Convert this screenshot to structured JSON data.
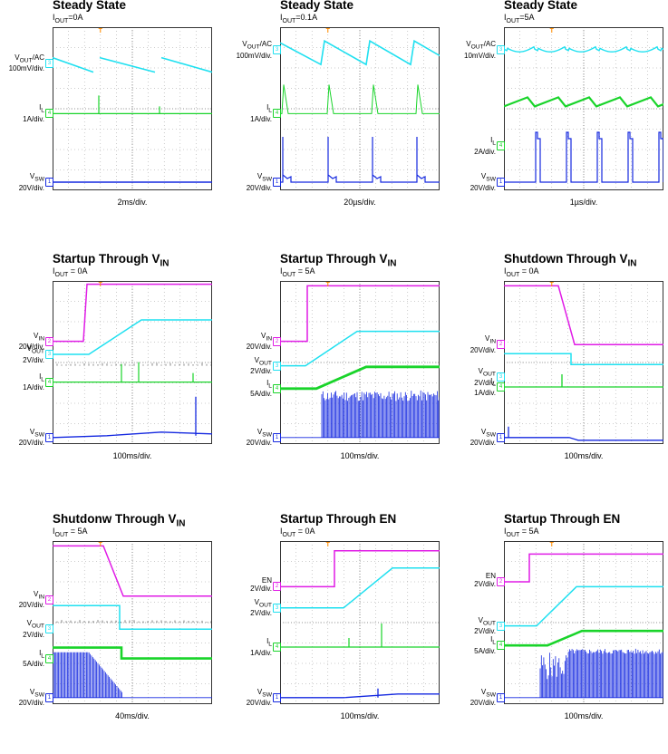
{
  "colors": {
    "vout": "#1fe0f0",
    "il": "#19d42a",
    "vsw": "#1428e0",
    "vin": "#e01ce6",
    "trigger": "#ff8c00",
    "grid": "#9a9a9a"
  },
  "panels": [
    {
      "title": "Steady State",
      "sub_main": "I",
      "sub_sub": "OUT",
      "sub_rest": "=0A",
      "timebase": "2ms/div.",
      "traces": [
        {
          "name": "VOUT/AC 100mV/div.",
          "label_lines": [
            "V<sub>OUT</sub>/AC",
            "100mV/div."
          ],
          "tag": "3",
          "color": "vout",
          "y": 0.22
        },
        {
          "name": "IL 1A/div.",
          "label_lines": [
            "I<sub>L</sub>",
            "1A/div."
          ],
          "tag": "4",
          "color": "il",
          "y": 0.53
        },
        {
          "name": "VSW 20V/div.",
          "label_lines": [
            "V<sub>SW</sub>",
            "20V/div."
          ],
          "tag": "1",
          "color": "vsw",
          "y": 0.95
        }
      ]
    },
    {
      "title": "Steady State",
      "sub_main": "I",
      "sub_sub": "OUT",
      "sub_rest": "=0.1A",
      "timebase": "20µs/div.",
      "traces": [
        {
          "name": "VOUT/AC 100mV/div.",
          "label_lines": [
            "V<sub>OUT</sub>/AC",
            "100mV/div."
          ],
          "tag": "3",
          "color": "vout",
          "y": 0.14
        },
        {
          "name": "IL 1A/div.",
          "label_lines": [
            "I<sub>L</sub>",
            "1A/div."
          ],
          "tag": "4",
          "color": "il",
          "y": 0.53
        },
        {
          "name": "VSW 20V/div.",
          "label_lines": [
            "V<sub>SW</sub>",
            "20V/div."
          ],
          "tag": "1",
          "color": "vsw",
          "y": 0.95
        }
      ]
    },
    {
      "title": "Steady State",
      "sub_main": "I",
      "sub_sub": "OUT",
      "sub_rest": "=5A",
      "timebase": "1µs/div.",
      "traces": [
        {
          "name": "VOUT/AC 10mV/div.",
          "label_lines": [
            "V<sub>OUT</sub>/AC",
            "10mV/div."
          ],
          "tag": "3",
          "color": "vout",
          "y": 0.14
        },
        {
          "name": "IL 2A/div.",
          "label_lines": [
            "I<sub>L</sub>",
            "2A/div."
          ],
          "tag": "4",
          "color": "il",
          "y": 0.73
        },
        {
          "name": "VSW 20V/div.",
          "label_lines": [
            "V<sub>SW</sub>",
            "20V/div."
          ],
          "tag": "1",
          "color": "vsw",
          "y": 0.95
        }
      ]
    },
    {
      "title": "Startup Through V",
      "title_sub": "IN",
      "sub_main": "I",
      "sub_sub": "OUT",
      "sub_rest": " = 0A",
      "timebase": "100ms/div.",
      "traces": [
        {
          "name": "VIN 20V/div.",
          "label_lines": [
            "V<sub>IN</sub>",
            "20V/div."
          ],
          "tag": "2",
          "color": "vin",
          "y": 0.37
        },
        {
          "name": "VOUT 2V/div.",
          "label_lines": [
            "V<sub>OUT</sub>",
            "2V/div."
          ],
          "tag": "3",
          "color": "vout",
          "y": 0.45
        },
        {
          "name": "IL 1A/div.",
          "label_lines": [
            "I<sub>L</sub>",
            "1A/div."
          ],
          "tag": "4",
          "color": "il",
          "y": 0.62
        },
        {
          "name": "VSW 20V/div.",
          "label_lines": [
            "V<sub>SW</sub>",
            "20V/div."
          ],
          "tag": "1",
          "color": "vsw",
          "y": 0.96
        }
      ]
    },
    {
      "title": "Startup Through V",
      "title_sub": "IN",
      "sub_main": "I",
      "sub_sub": "OUT",
      "sub_rest": " = 5A",
      "timebase": "100ms/div.",
      "traces": [
        {
          "name": "VIN 20V/div.",
          "label_lines": [
            "V<sub>IN</sub>",
            "20V/div."
          ],
          "tag": "2",
          "color": "vin",
          "y": 0.37
        },
        {
          "name": "VOUT 2V/div.",
          "label_lines": [
            "V<sub>OUT</sub>",
            "2V/div."
          ],
          "tag": "3",
          "color": "vout",
          "y": 0.52
        },
        {
          "name": "IL 5A/div.",
          "label_lines": [
            "I<sub>L</sub>",
            "5A/div."
          ],
          "tag": "4",
          "color": "il",
          "y": 0.66
        },
        {
          "name": "VSW 20V/div.",
          "label_lines": [
            "V<sub>SW</sub>",
            "20V/div."
          ],
          "tag": "1",
          "color": "vsw",
          "y": 0.96
        }
      ]
    },
    {
      "title": "Shutdown Through V",
      "title_sub": "IN",
      "sub_main": "I",
      "sub_sub": "OUT",
      "sub_rest": " = 0A",
      "timebase": "100ms/div.",
      "traces": [
        {
          "name": "VIN 20V/div.",
          "label_lines": [
            "V<sub>IN</sub>",
            "20V/div."
          ],
          "tag": "2",
          "color": "vin",
          "y": 0.39
        },
        {
          "name": "VOUT 2V/div.",
          "label_lines": [
            "V<sub>OUT</sub>",
            "2V/div."
          ],
          "tag": "3",
          "color": "vout",
          "y": 0.59
        },
        {
          "name": "IL 1A/div.",
          "label_lines": [
            "I<sub>L</sub>",
            "1A/div."
          ],
          "tag": "4",
          "color": "il",
          "y": 0.65
        },
        {
          "name": "VSW 20V/div.",
          "label_lines": [
            "V<sub>SW</sub>",
            "20V/div."
          ],
          "tag": "1",
          "color": "vsw",
          "y": 0.96
        }
      ]
    },
    {
      "title": "Shutdonw Through V",
      "title_sub": "IN",
      "sub_main": "I",
      "sub_sub": "OUT",
      "sub_rest": " = 5A",
      "timebase": "40ms/div.",
      "traces": [
        {
          "name": "VIN 20V/div.",
          "label_lines": [
            "V<sub>IN</sub>",
            "20V/div."
          ],
          "tag": "2",
          "color": "vin",
          "y": 0.36
        },
        {
          "name": "VOUT 2V/div.",
          "label_lines": [
            "V<sub>OUT</sub>",
            "2V/div."
          ],
          "tag": "3",
          "color": "vout",
          "y": 0.54
        },
        {
          "name": "IL 5A/div.",
          "label_lines": [
            "I<sub>L</sub>",
            "5A/div."
          ],
          "tag": "4",
          "color": "il",
          "y": 0.72
        },
        {
          "name": "VSW 20V/div.",
          "label_lines": [
            "V<sub>SW</sub>",
            "20V/div."
          ],
          "tag": "1",
          "color": "vsw",
          "y": 0.96
        }
      ]
    },
    {
      "title": "Startup Through EN",
      "sub_main": "I",
      "sub_sub": "OUT",
      "sub_rest": " = 0A",
      "timebase": "100ms/div.",
      "traces": [
        {
          "name": "EN 2V/div.",
          "label_lines": [
            "EN",
            "2V/div."
          ],
          "tag": "2",
          "color": "vin",
          "y": 0.28
        },
        {
          "name": "VOUT 2V/div.",
          "label_lines": [
            "V<sub>OUT</sub>",
            "2V/div."
          ],
          "tag": "3",
          "color": "vout",
          "y": 0.41
        },
        {
          "name": "IL 1A/div.",
          "label_lines": [
            "I<sub>L</sub>",
            "1A/div."
          ],
          "tag": "4",
          "color": "il",
          "y": 0.65
        },
        {
          "name": "VSW 20V/div.",
          "label_lines": [
            "V<sub>SW</sub>",
            "20V/div."
          ],
          "tag": "1",
          "color": "vsw",
          "y": 0.96
        }
      ]
    },
    {
      "title": "Startup Through EN",
      "sub_main": "I",
      "sub_sub": "OUT",
      "sub_rest": " = 5A",
      "timebase": "100ms/div.",
      "traces": [
        {
          "name": "EN 2V/div.",
          "label_lines": [
            "EN",
            "2V/div."
          ],
          "tag": "2",
          "color": "vin",
          "y": 0.25
        },
        {
          "name": "VOUT 2V/div.",
          "label_lines": [
            "V<sub>OUT</sub>",
            "2V/div."
          ],
          "tag": "3",
          "color": "vout",
          "y": 0.52
        },
        {
          "name": "IL 5A/div.",
          "label_lines": [
            "I<sub>L</sub>",
            "5A/div."
          ],
          "tag": "4",
          "color": "il",
          "y": 0.64
        },
        {
          "name": "VSW 20V/div.",
          "label_lines": [
            "V<sub>SW</sub>",
            "20V/div."
          ],
          "tag": "1",
          "color": "vsw",
          "y": 0.96
        }
      ]
    }
  ],
  "chart_data": [
    {
      "type": "line",
      "title": "Steady State",
      "subtitle": "IOUT=0A",
      "xlabel": "2ms/div.",
      "series": [
        {
          "name": "VOUT/AC"
        },
        {
          "name": "IL"
        },
        {
          "name": "VSW"
        }
      ],
      "grid": true
    },
    {
      "type": "line",
      "title": "Steady State",
      "subtitle": "IOUT=0.1A",
      "xlabel": "20µs/div.",
      "series": [
        {
          "name": "VOUT/AC"
        },
        {
          "name": "IL"
        },
        {
          "name": "VSW"
        }
      ],
      "grid": true
    },
    {
      "type": "line",
      "title": "Steady State",
      "subtitle": "IOUT=5A",
      "xlabel": "1µs/div.",
      "series": [
        {
          "name": "VOUT/AC"
        },
        {
          "name": "IL"
        },
        {
          "name": "VSW"
        }
      ],
      "grid": true
    },
    {
      "type": "line",
      "title": "Startup Through VIN",
      "subtitle": "IOUT = 0A",
      "xlabel": "100ms/div.",
      "series": [
        {
          "name": "VIN"
        },
        {
          "name": "VOUT"
        },
        {
          "name": "IL"
        },
        {
          "name": "VSW"
        }
      ],
      "grid": true
    },
    {
      "type": "line",
      "title": "Startup Through VIN",
      "subtitle": "IOUT = 5A",
      "xlabel": "100ms/div.",
      "series": [
        {
          "name": "VIN"
        },
        {
          "name": "VOUT"
        },
        {
          "name": "IL"
        },
        {
          "name": "VSW"
        }
      ],
      "grid": true
    },
    {
      "type": "line",
      "title": "Shutdown Through VIN",
      "subtitle": "IOUT = 0A",
      "xlabel": "100ms/div.",
      "series": [
        {
          "name": "VIN"
        },
        {
          "name": "VOUT"
        },
        {
          "name": "IL"
        },
        {
          "name": "VSW"
        }
      ],
      "grid": true
    },
    {
      "type": "line",
      "title": "Shutdonw Through VIN",
      "subtitle": "IOUT = 5A",
      "xlabel": "40ms/div.",
      "series": [
        {
          "name": "VIN"
        },
        {
          "name": "VOUT"
        },
        {
          "name": "IL"
        },
        {
          "name": "VSW"
        }
      ],
      "grid": true
    },
    {
      "type": "line",
      "title": "Startup Through EN",
      "subtitle": "IOUT = 0A",
      "xlabel": "100ms/div.",
      "series": [
        {
          "name": "EN"
        },
        {
          "name": "VOUT"
        },
        {
          "name": "IL"
        },
        {
          "name": "VSW"
        }
      ],
      "grid": true
    },
    {
      "type": "line",
      "title": "Startup Through EN",
      "subtitle": "IOUT = 5A",
      "xlabel": "100ms/div.",
      "series": [
        {
          "name": "EN"
        },
        {
          "name": "VOUT"
        },
        {
          "name": "IL"
        },
        {
          "name": "VSW"
        }
      ],
      "grid": true
    }
  ]
}
